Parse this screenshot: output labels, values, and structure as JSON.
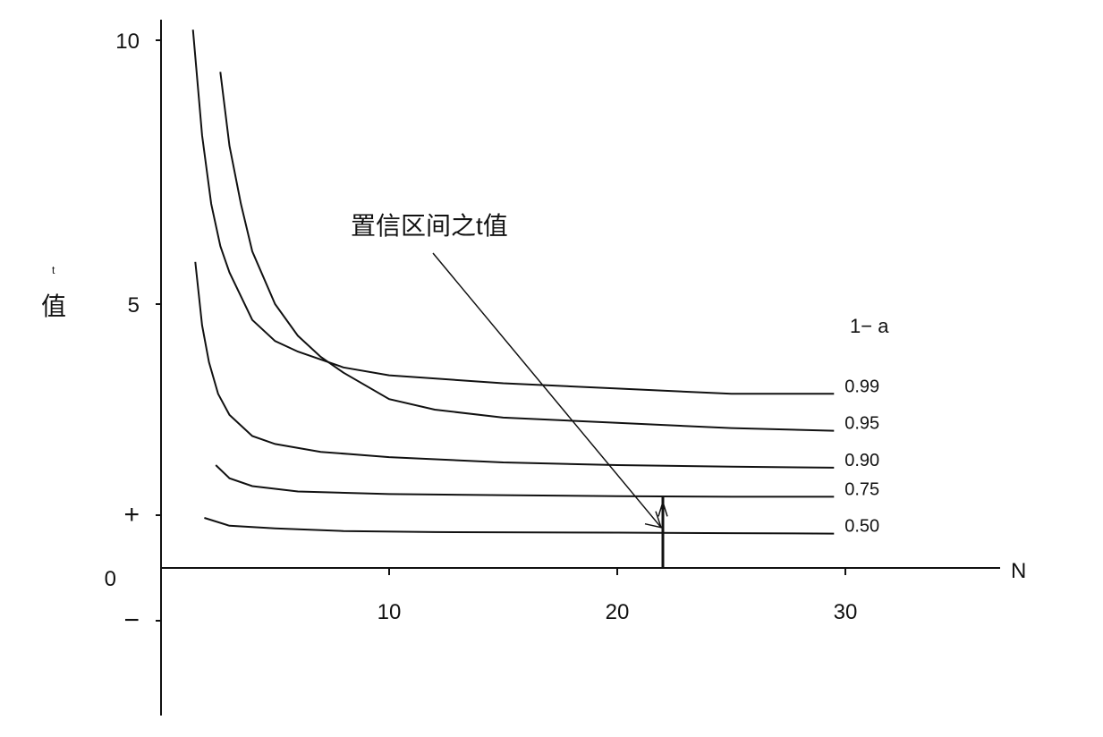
{
  "chart_data": {
    "type": "line",
    "title": "",
    "ylabel": "值",
    "ylabel_mark": "t",
    "xlabel": "N",
    "xlim": [
      0,
      36
    ],
    "ylim": [
      -2.8,
      10
    ],
    "y_ticks": [
      {
        "value": 10,
        "label": "10"
      },
      {
        "value": 5,
        "label": "5"
      },
      {
        "value": 1,
        "label": "+"
      },
      {
        "value": 0,
        "label": "0"
      },
      {
        "value": -1,
        "label": "−"
      }
    ],
    "x_ticks": [
      {
        "value": 10,
        "label": "10"
      },
      {
        "value": 20,
        "label": "20"
      },
      {
        "value": 30,
        "label": "30"
      }
    ],
    "grid": false,
    "legend_title": "1− a",
    "series": [
      {
        "name": "0.99",
        "points": [
          [
            1.4,
            10.2
          ],
          [
            1.8,
            8.2
          ],
          [
            2.2,
            6.9
          ],
          [
            2.6,
            6.1
          ],
          [
            3,
            5.6
          ],
          [
            4,
            4.7
          ],
          [
            5,
            4.3
          ],
          [
            6,
            4.1
          ],
          [
            8,
            3.8
          ],
          [
            10,
            3.65
          ],
          [
            15,
            3.5
          ],
          [
            20,
            3.4
          ],
          [
            25,
            3.3
          ],
          [
            29.5,
            3.3
          ]
        ]
      },
      {
        "name": "0.95",
        "points": [
          [
            2.6,
            9.4
          ],
          [
            3,
            8.0
          ],
          [
            3.5,
            6.9
          ],
          [
            4,
            6.0
          ],
          [
            5,
            5.0
          ],
          [
            6,
            4.4
          ],
          [
            7,
            4.0
          ],
          [
            8,
            3.7
          ],
          [
            10,
            3.2
          ],
          [
            12,
            3.0
          ],
          [
            15,
            2.85
          ],
          [
            20,
            2.75
          ],
          [
            25,
            2.65
          ],
          [
            29.5,
            2.6
          ]
        ]
      },
      {
        "name": "0.90",
        "points": [
          [
            1.5,
            5.8
          ],
          [
            1.8,
            4.6
          ],
          [
            2.1,
            3.9
          ],
          [
            2.5,
            3.3
          ],
          [
            3,
            2.9
          ],
          [
            4,
            2.5
          ],
          [
            5,
            2.35
          ],
          [
            7,
            2.2
          ],
          [
            10,
            2.1
          ],
          [
            15,
            2.0
          ],
          [
            20,
            1.95
          ],
          [
            25,
            1.92
          ],
          [
            29.5,
            1.9
          ]
        ]
      },
      {
        "name": "0.75",
        "points": [
          [
            2.4,
            1.95
          ],
          [
            3,
            1.7
          ],
          [
            4,
            1.55
          ],
          [
            6,
            1.45
          ],
          [
            10,
            1.4
          ],
          [
            15,
            1.38
          ],
          [
            20,
            1.36
          ],
          [
            25,
            1.35
          ],
          [
            29.5,
            1.35
          ]
        ]
      },
      {
        "name": "0.50",
        "points": [
          [
            1.9,
            0.95
          ],
          [
            3,
            0.8
          ],
          [
            5,
            0.75
          ],
          [
            8,
            0.7
          ],
          [
            12,
            0.68
          ],
          [
            20,
            0.67
          ],
          [
            25,
            0.66
          ],
          [
            29.5,
            0.65
          ]
        ]
      }
    ],
    "annotation": {
      "text": "置信区间之t值",
      "x": 22,
      "y": 0.7
    },
    "marker_x": 22
  }
}
